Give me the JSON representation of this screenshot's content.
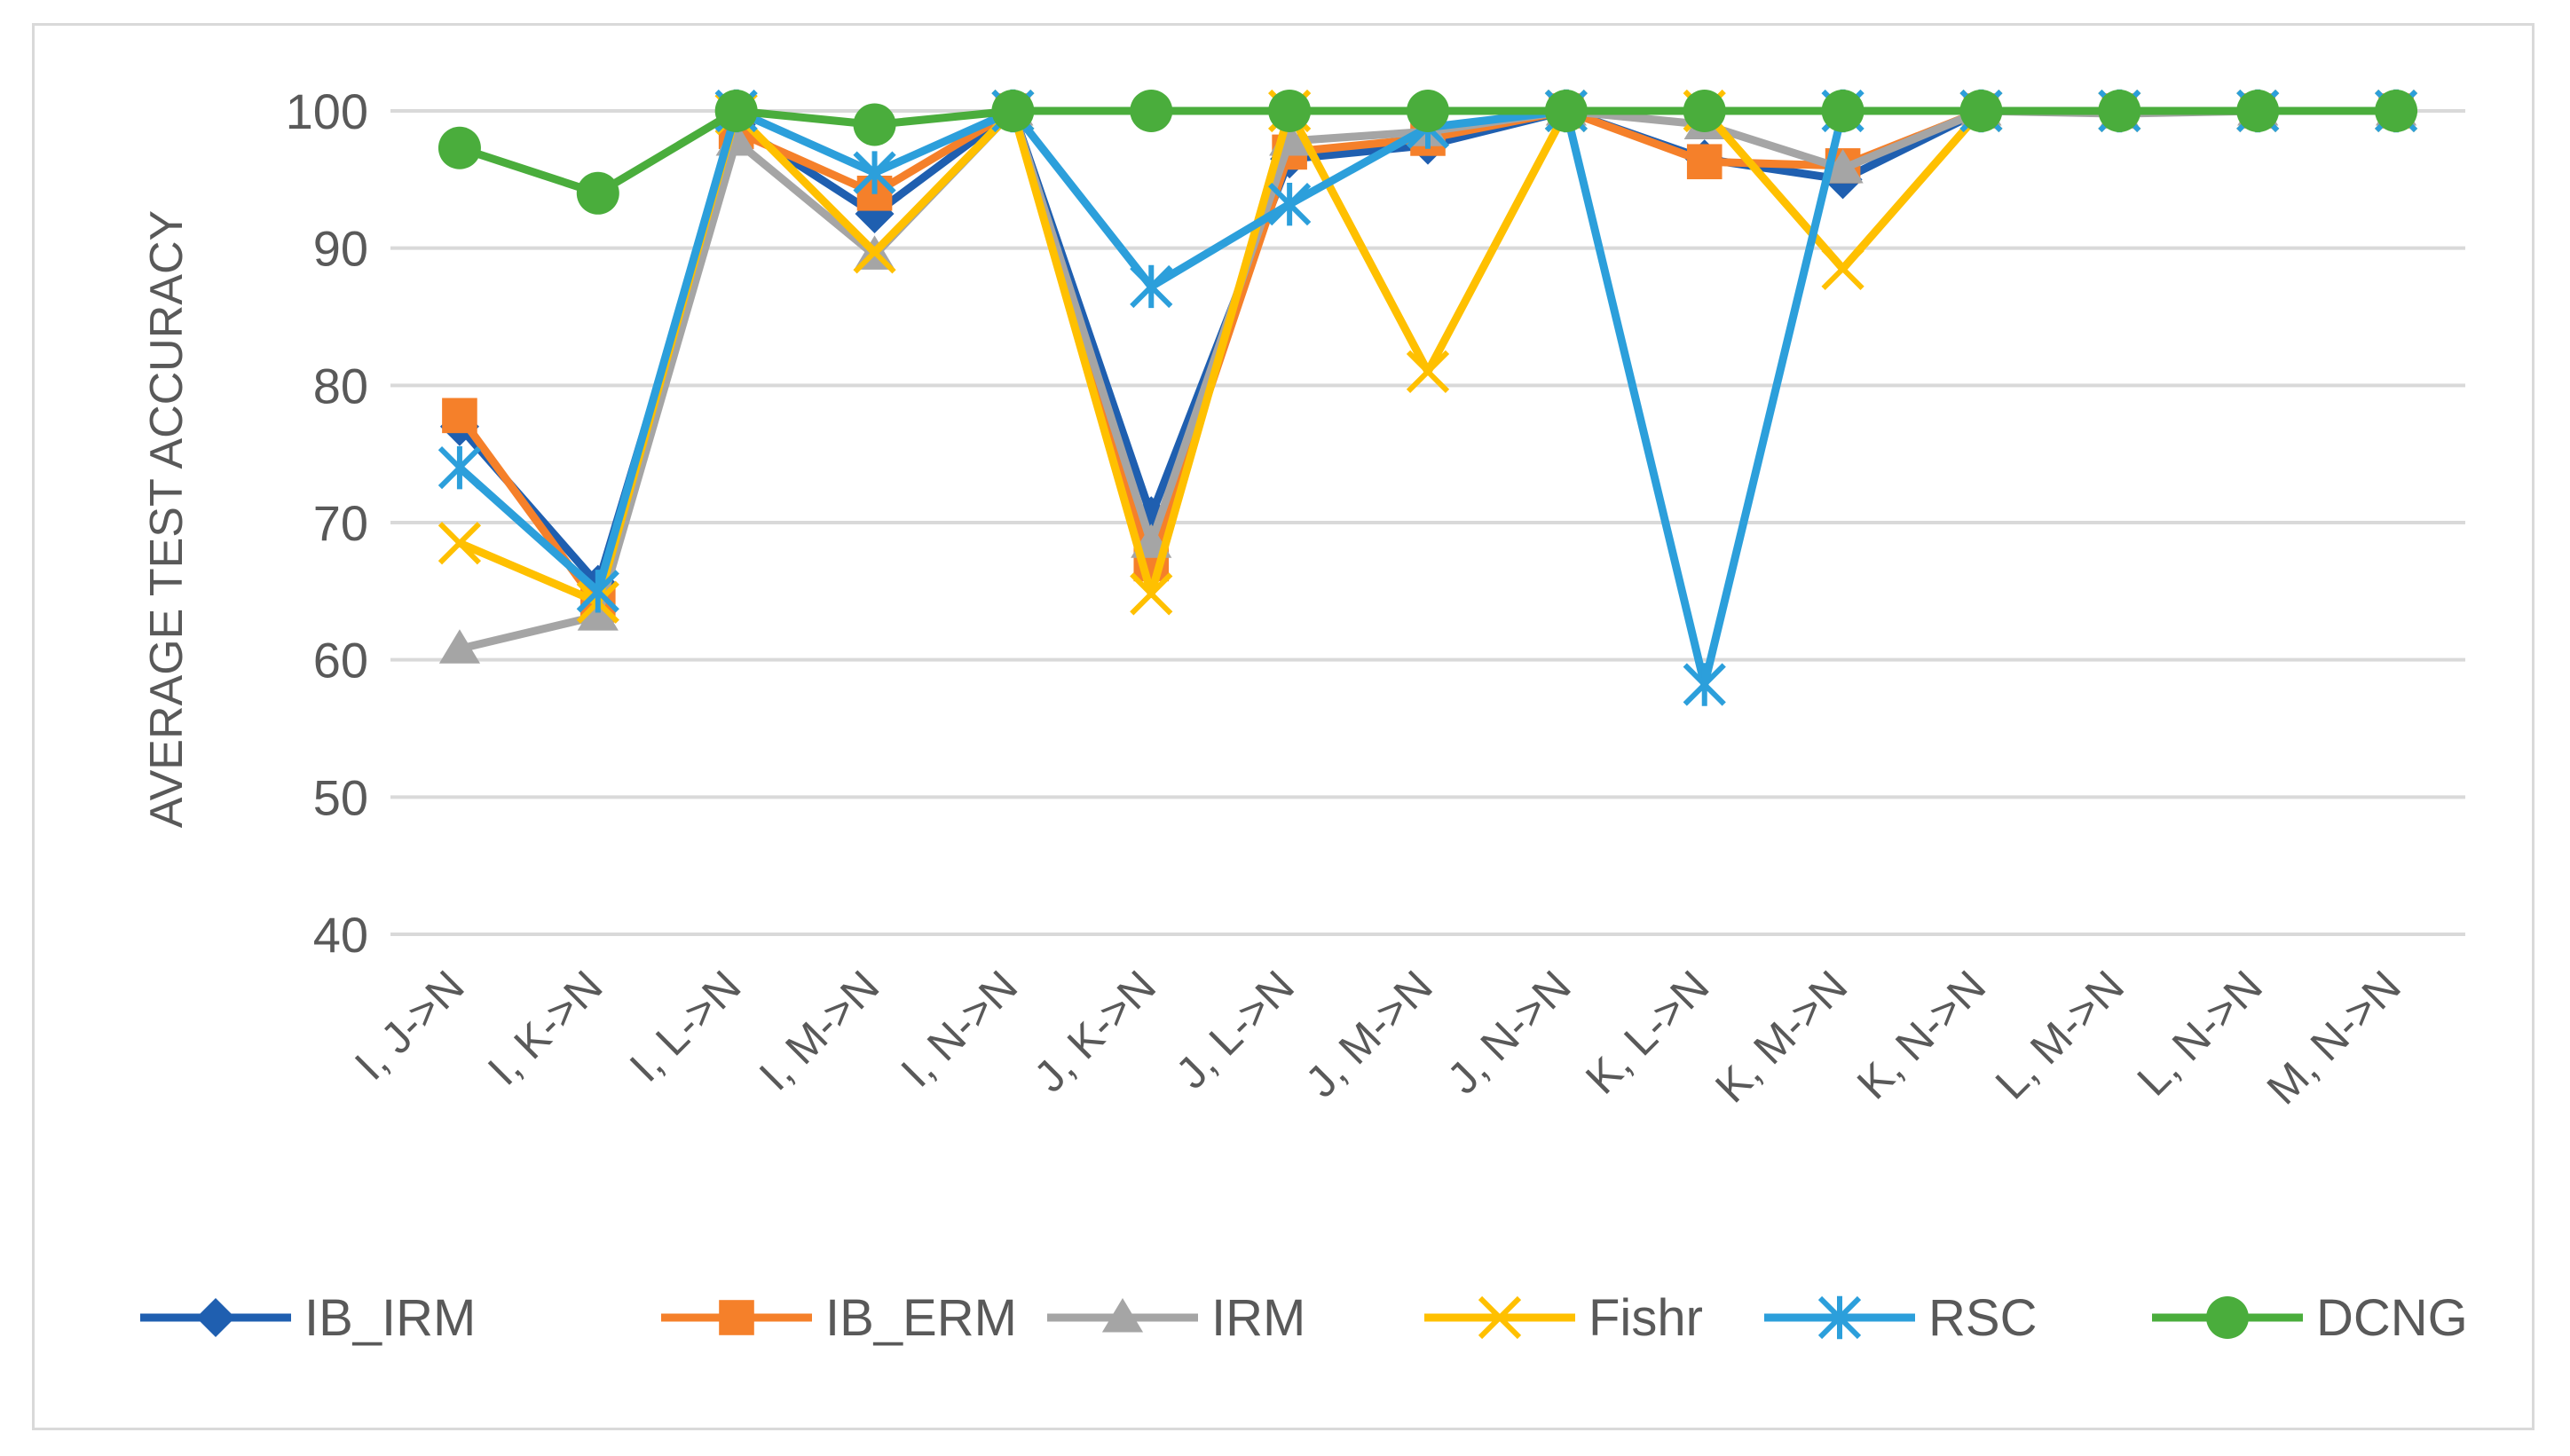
{
  "chart_data": {
    "type": "line",
    "title": "",
    "xlabel": "",
    "ylabel": "AVERAGE TEST ACCURACY",
    "ylim": [
      40,
      100
    ],
    "yticks": [
      40,
      50,
      60,
      70,
      80,
      90,
      100
    ],
    "grid": true,
    "legend_position": "bottom",
    "categories": [
      "I, J->N",
      "I, K->N",
      "I, L->N",
      "I, M->N",
      "I, N->N",
      "J, K->N",
      "J, L->N",
      "J, M->N",
      "J, N->N",
      "K, L->N",
      "K, M->N",
      "K, N->N",
      "L, M->N",
      "L, N->N",
      "M, N->N"
    ],
    "series": [
      {
        "name": "IB_IRM",
        "color": "#1f5fb0",
        "marker": "diamond",
        "values": [
          77,
          65.5,
          99,
          92.5,
          100,
          70.5,
          96.5,
          97.5,
          100,
          96.5,
          95,
          100,
          100,
          100,
          100
        ]
      },
      {
        "name": "IB_ERM",
        "color": "#f5802a",
        "marker": "square",
        "values": [
          77.8,
          64,
          98.5,
          94,
          100,
          67,
          97,
          98,
          100,
          96.3,
          96,
          100,
          100,
          100,
          100
        ]
      },
      {
        "name": "IRM",
        "color": "#a5a5a5",
        "marker": "triangle",
        "values": [
          60.8,
          63.2,
          97.8,
          89.5,
          100,
          68.5,
          97.8,
          98.5,
          100,
          99,
          95.8,
          100,
          99.8,
          100,
          100
        ]
      },
      {
        "name": "Fishr",
        "color": "#ffc000",
        "marker": "x",
        "values": [
          68.5,
          64.2,
          99.8,
          89.7,
          100,
          64.8,
          100,
          81,
          100,
          100,
          88.5,
          100,
          100,
          100,
          100
        ]
      },
      {
        "name": "RSC",
        "color": "#2c9fdb",
        "marker": "asterisk",
        "values": [
          74,
          65,
          100,
          95.5,
          100,
          87.2,
          93.2,
          98.8,
          100,
          58.2,
          100,
          100,
          100,
          100,
          100
        ]
      },
      {
        "name": "DCNG",
        "color": "#4aad3c",
        "marker": "circle",
        "values": [
          97.3,
          94,
          100,
          99,
          100,
          100,
          100,
          100,
          100,
          100,
          100,
          100,
          100,
          100,
          100
        ]
      }
    ]
  }
}
